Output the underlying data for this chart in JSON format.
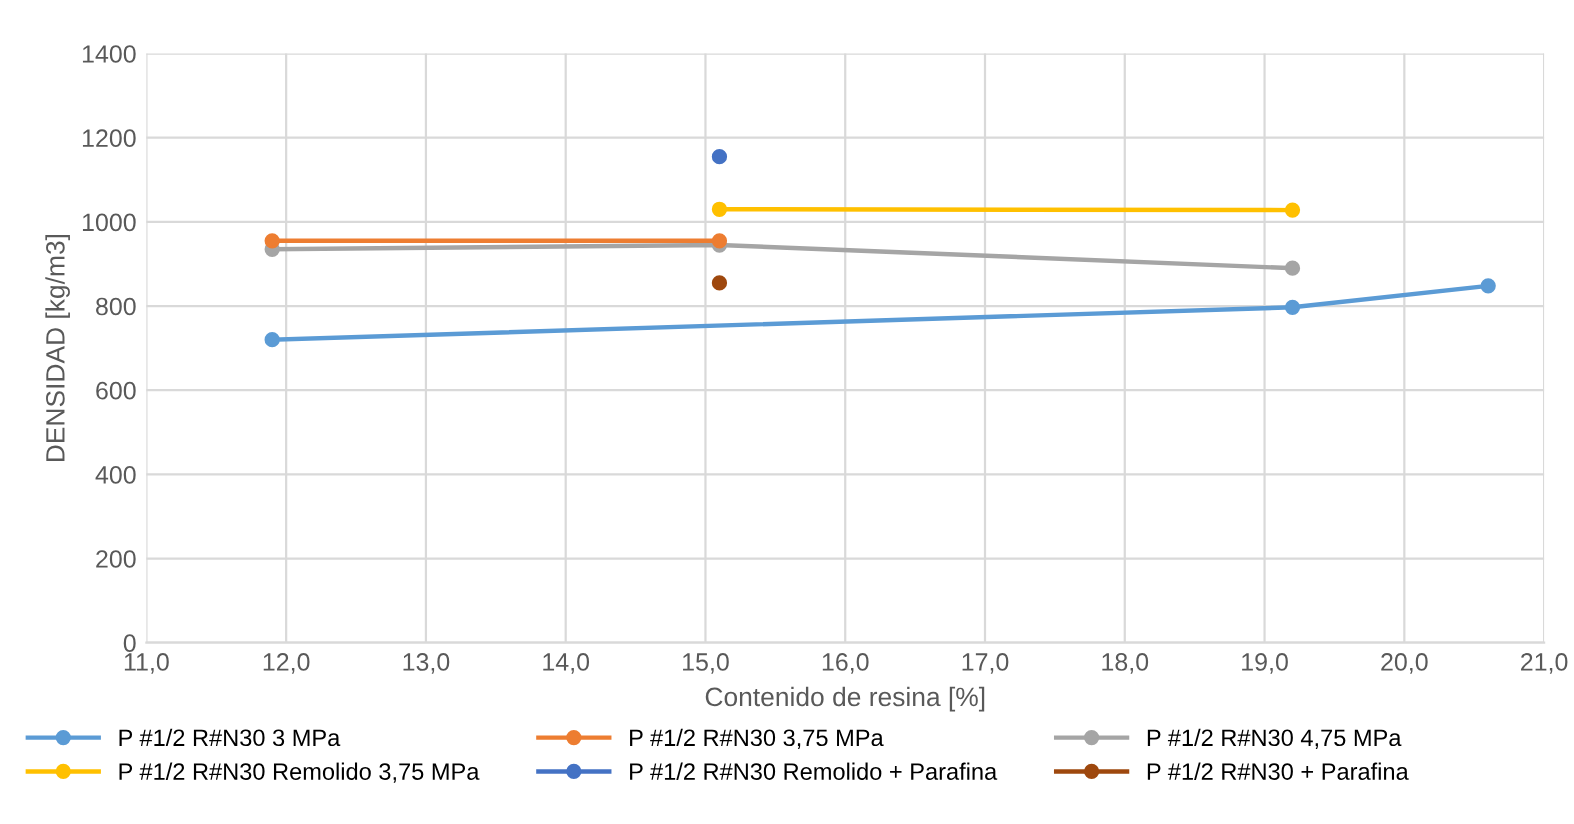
{
  "chart_data": {
    "type": "line",
    "xlabel": "Contenido de resina [%]",
    "ylabel": "DENSIDAD [kg/m3]",
    "xlim": [
      11,
      21
    ],
    "xticks": [
      {
        "value": 11,
        "label": "11,0"
      },
      {
        "value": 12,
        "label": "12,0"
      },
      {
        "value": 13,
        "label": "13,0"
      },
      {
        "value": 14,
        "label": "14,0"
      },
      {
        "value": 15,
        "label": "15,0"
      },
      {
        "value": 16,
        "label": "16,0"
      },
      {
        "value": 17,
        "label": "17,0"
      },
      {
        "value": 18,
        "label": "18,0"
      },
      {
        "value": 19,
        "label": "19,0"
      },
      {
        "value": 20,
        "label": "20,0"
      },
      {
        "value": 21,
        "label": "21,0"
      }
    ],
    "ylim": [
      0,
      1400
    ],
    "yticks": [
      0,
      200,
      400,
      600,
      800,
      1000,
      1200,
      1400
    ],
    "grid": true,
    "legend": "bottom",
    "marker": "circle",
    "series": [
      {
        "name": "P #1/2 R#N30 3 MPa",
        "color": "#5b9bd5",
        "x": [
          11.9,
          19.2,
          20.6
        ],
        "values": [
          720,
          797,
          848
        ]
      },
      {
        "name": "P #1/2 R#N30 3,75 MPa",
        "color": "#ed7d31",
        "x": [
          11.9,
          15.1
        ],
        "values": [
          955,
          955
        ]
      },
      {
        "name": "P #1/2 R#N30 4,75 MPa",
        "color": "#a5a5a5",
        "x": [
          11.9,
          15.1,
          19.2
        ],
        "values": [
          935,
          945,
          890
        ]
      },
      {
        "name": "P #1/2 R#N30 Remolido 3,75 MPa",
        "color": "#ffc000",
        "x": [
          15.1,
          19.2
        ],
        "values": [
          1030,
          1028
        ]
      },
      {
        "name": "P #1/2 R#N30 Remolido + Parafina",
        "color": "#4472c4",
        "x": [
          15.1
        ],
        "values": [
          1155
        ]
      },
      {
        "name": "P #1/2 R#N30 + Parafina",
        "color": "#9e480e",
        "x": [
          15.1
        ],
        "values": [
          855
        ]
      }
    ]
  }
}
